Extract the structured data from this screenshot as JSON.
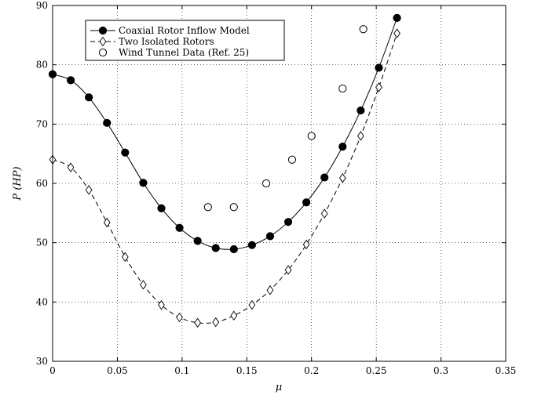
{
  "chart_data": {
    "type": "line",
    "xlabel": "μ",
    "ylabel": "P (HP)",
    "xlim": [
      0,
      0.35
    ],
    "ylim": [
      30,
      90
    ],
    "xticks": [
      "0",
      "0.05",
      "0.1",
      "0.15",
      "0.2",
      "0.25",
      "0.3",
      "0.35"
    ],
    "yticks": [
      "30",
      "40",
      "50",
      "60",
      "70",
      "80",
      "90"
    ],
    "grid": true,
    "legend_position": "top-left",
    "series": [
      {
        "name": "Coaxial Rotor Inflow Model",
        "marker": "filled-circle",
        "line": "solid",
        "x": [
          0,
          0.014,
          0.028,
          0.042,
          0.056,
          0.07,
          0.084,
          0.098,
          0.112,
          0.126,
          0.14,
          0.154,
          0.168,
          0.182,
          0.196,
          0.21,
          0.224,
          0.238,
          0.252,
          0.266
        ],
        "y": [
          78.4,
          77.4,
          74.5,
          70.2,
          65.2,
          60.1,
          55.8,
          52.5,
          50.3,
          49.1,
          48.9,
          49.6,
          51.1,
          53.5,
          56.8,
          61.0,
          66.2,
          72.3,
          79.5,
          87.9
        ]
      },
      {
        "name": "Two Isolated Rotors",
        "marker": "diamond",
        "line": "dashed",
        "x": [
          0,
          0.014,
          0.028,
          0.042,
          0.056,
          0.07,
          0.084,
          0.098,
          0.112,
          0.126,
          0.14,
          0.154,
          0.168,
          0.182,
          0.196,
          0.21,
          0.224,
          0.238,
          0.252,
          0.266
        ],
        "y": [
          64.0,
          62.7,
          58.9,
          53.4,
          47.6,
          42.9,
          39.5,
          37.4,
          36.5,
          36.6,
          37.7,
          39.5,
          42.0,
          45.4,
          49.7,
          54.9,
          60.9,
          68.0,
          76.2,
          85.3
        ]
      },
      {
        "name": "Wind Tunnel Data (Ref. 25)",
        "marker": "open-circle",
        "line": "none",
        "x": [
          0.12,
          0.14,
          0.165,
          0.185,
          0.2,
          0.224,
          0.24
        ],
        "y": [
          56,
          56,
          60,
          64,
          68,
          76,
          86
        ]
      }
    ]
  }
}
